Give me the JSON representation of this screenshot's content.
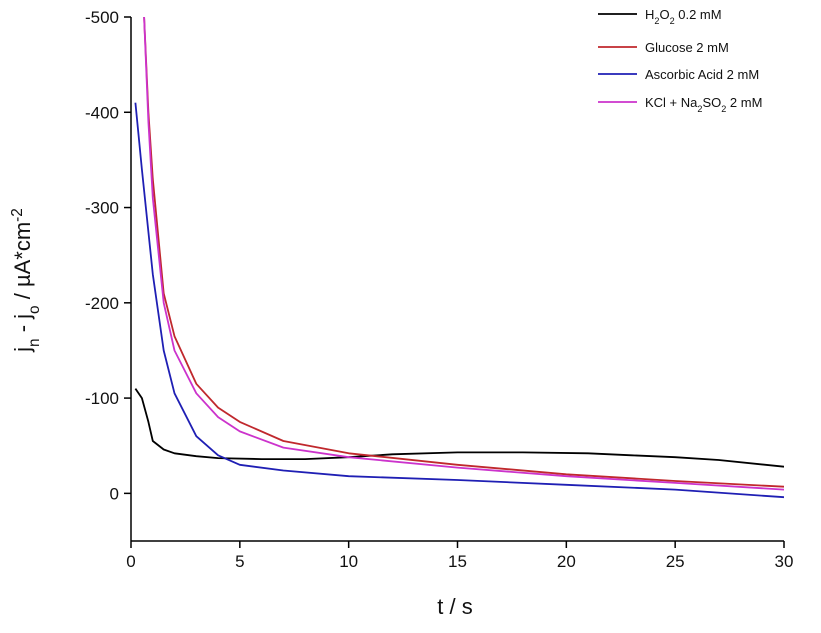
{
  "chart_data": {
    "type": "line",
    "xlabel": "t / s",
    "ylabel": [
      {
        "text": "j"
      },
      {
        "text": "n",
        "sub": true
      },
      {
        "text": " - j"
      },
      {
        "text": "o",
        "sub": true
      },
      {
        "text": " / µA*cm"
      },
      {
        "text": "-2",
        "sup": true
      }
    ],
    "xlim": [
      0,
      30
    ],
    "xticks": [
      0,
      5,
      10,
      15,
      20,
      25,
      30
    ],
    "ylim": [
      -500,
      50
    ],
    "yticks": [
      -500,
      -400,
      -300,
      -200,
      -100,
      0
    ],
    "legend": "upper right",
    "series": [
      {
        "name": [
          {
            "text": "H"
          },
          {
            "text": "2",
            "sub": true
          },
          {
            "text": "O"
          },
          {
            "text": "2",
            "sub": true
          },
          {
            "text": " 0.2 mM"
          }
        ],
        "color": "#000000",
        "x": [
          0.2,
          0.5,
          0.8,
          1,
          1.5,
          2,
          3,
          4,
          6,
          8,
          10,
          12,
          15,
          18,
          21,
          23,
          25,
          27,
          30
        ],
        "values": [
          -110,
          -100,
          -75,
          -55,
          -46,
          -42,
          -39,
          -37,
          -36,
          -36,
          -38,
          -41,
          -43,
          -43,
          -42,
          -40,
          -38,
          -35,
          -28
        ]
      },
      {
        "name": [
          {
            "text": "Glucose 2 mM"
          }
        ],
        "color": "#c0282d",
        "x": [
          0.6,
          0.8,
          1,
          1.5,
          2,
          3,
          4,
          5,
          7,
          10,
          15,
          20,
          25,
          30
        ],
        "values": [
          -500,
          -400,
          -330,
          -210,
          -165,
          -115,
          -90,
          -75,
          -55,
          -42,
          -30,
          -20,
          -13,
          -7
        ]
      },
      {
        "name": [
          {
            "text": "Ascorbic Acid 2 mM"
          }
        ],
        "color": "#1f1fb4",
        "x": [
          0.2,
          0.5,
          1,
          1.5,
          2,
          3,
          4,
          5,
          7,
          10,
          15,
          20,
          25,
          30
        ],
        "values": [
          -410,
          -340,
          -230,
          -150,
          -105,
          -60,
          -40,
          -30,
          -24,
          -18,
          -14,
          -9,
          -4,
          4
        ]
      },
      {
        "name": [
          {
            "text": "KCl + Na"
          },
          {
            "text": "2",
            "sub": true
          },
          {
            "text": "SO"
          },
          {
            "text": "2",
            "sub": true
          },
          {
            "text": " 2 mM"
          }
        ],
        "color": "#cc33cc",
        "x": [
          0.6,
          0.8,
          1,
          1.5,
          2,
          3,
          4,
          5,
          7,
          10,
          15,
          20,
          25,
          30
        ],
        "values": [
          -500,
          -390,
          -310,
          -200,
          -150,
          -105,
          -80,
          -65,
          -48,
          -38,
          -27,
          -18,
          -11,
          -4
        ]
      }
    ]
  }
}
